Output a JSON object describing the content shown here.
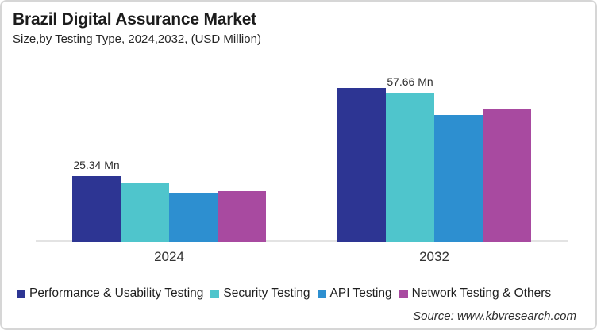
{
  "header": {
    "title": "Brazil Digital Assurance Market",
    "subtitle": "Size,by Testing Type, 2024,2032, (USD Million)"
  },
  "chart_data": {
    "type": "bar",
    "title": "Brazil Digital Assurance Market",
    "subtitle": "Size,by Testing Type, 2024,2032, (USD Million)",
    "unit": "USD Million",
    "categories": [
      "2024",
      "2032"
    ],
    "series": [
      {
        "name": "Performance & Usability Testing",
        "color": "#2D3593",
        "values": [
          25.34,
          59.4
        ]
      },
      {
        "name": "Security Testing",
        "color": "#4FC5CC",
        "values": [
          22.7,
          57.66
        ]
      },
      {
        "name": "API Testing",
        "color": "#2D8FD0",
        "values": [
          18.9,
          49.2
        ]
      },
      {
        "name": "Network Testing & Others",
        "color": "#A84AA0",
        "values": [
          19.5,
          51.4
        ]
      }
    ],
    "data_labels": [
      {
        "category_index": 0,
        "series_index": 0,
        "text": "25.34 Mn"
      },
      {
        "category_index": 1,
        "series_index": 1,
        "text": "57.66 Mn"
      }
    ],
    "ylim": [
      0,
      65
    ],
    "grid": false,
    "y_axis_visible": false,
    "legend_position": "bottom"
  },
  "footer": {
    "source": "Source: www.kbvresearch.com"
  }
}
